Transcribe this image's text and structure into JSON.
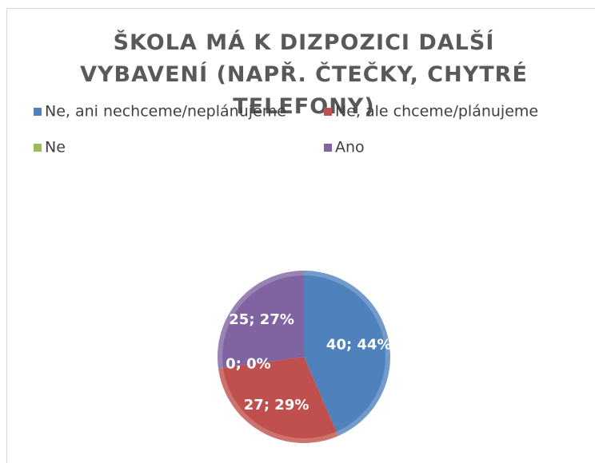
{
  "chart_data": {
    "type": "pie",
    "title": "ŠKOLA MÁ K DIZPOZICI DALŠÍ VYBAVENÍ (NAPŘ. ČTEČKY, CHYTRÉ TELEFONY)",
    "categories": [
      "Ne, ani nechceme/neplánujeme",
      "Ne, ale chceme/plánujeme",
      "Ne",
      "Ano"
    ],
    "values": [
      40,
      27,
      0,
      25
    ],
    "value_labels": [
      "40; 44%",
      "27; 29%",
      "0; 0%",
      "25; 27%"
    ],
    "colors": [
      "#4f81bd",
      "#c0504d",
      "#9bbb59",
      "#8064a2"
    ],
    "legend": "top"
  }
}
